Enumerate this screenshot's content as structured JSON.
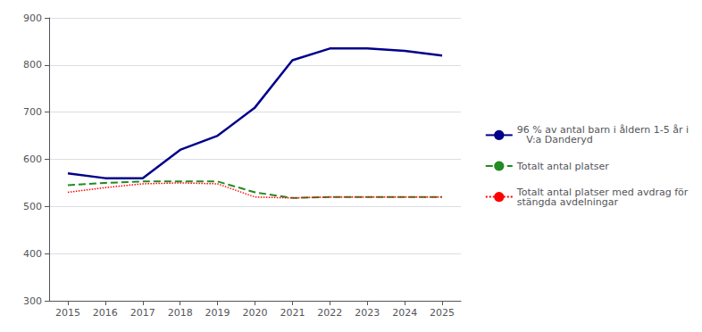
{
  "chart_data": {
    "type": "line",
    "x": [
      2015,
      2016,
      2017,
      2018,
      2019,
      2020,
      2021,
      2022,
      2023,
      2024,
      2025
    ],
    "series": [
      {
        "name": "96 % av antal barn i åldern 1-5 år i\n   V:a Danderyd",
        "color": "#00008B",
        "line_style": "solid",
        "values": [
          570,
          560,
          560,
          620,
          650,
          710,
          810,
          835,
          835,
          830,
          820
        ]
      },
      {
        "name": "Totalt antal platser",
        "color": "#228B22",
        "line_style": "dashed",
        "values": [
          545,
          550,
          553,
          553,
          553,
          530,
          518,
          520,
          520,
          520,
          520
        ]
      },
      {
        "name": "Totalt antal platser med avdrag för\nstängda avdelningar",
        "color": "#FF0000",
        "line_style": "dotted",
        "values": [
          530,
          540,
          548,
          550,
          548,
          520,
          518,
          520,
          520,
          520,
          520
        ]
      }
    ],
    "xlim": [
      2014.5,
      2025.5
    ],
    "xticks": [
      2015,
      2016,
      2017,
      2018,
      2019,
      2020,
      2021,
      2022,
      2023,
      2024,
      2025
    ],
    "ylim": [
      300,
      900
    ],
    "yticks": [
      300,
      400,
      500,
      600,
      700,
      800,
      900
    ],
    "grid": true,
    "legend": "right"
  }
}
